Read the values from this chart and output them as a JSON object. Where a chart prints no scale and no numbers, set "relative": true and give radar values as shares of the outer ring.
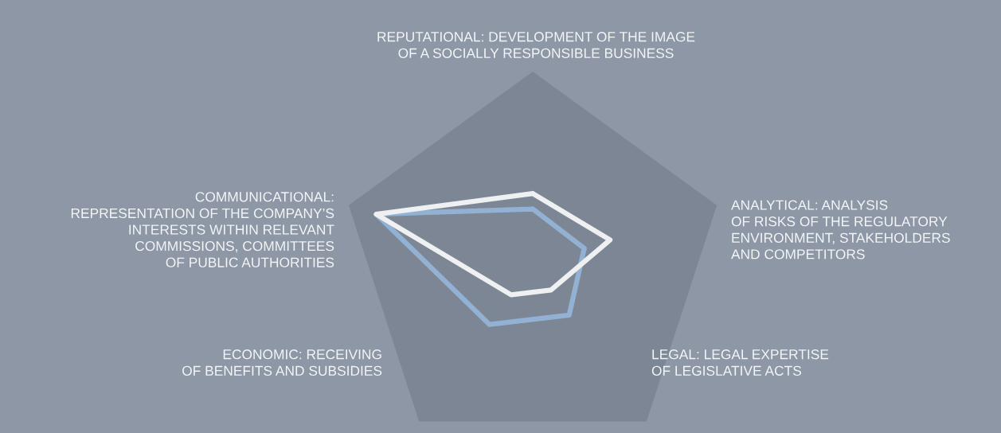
{
  "chart_data": {
    "type": "radar",
    "relative": true,
    "categories": [
      "REPUTATIONAL: DEVELOPMENT OF THE IMAGE\nOF A SOCIALLY RESPONSIBLE BUSINESS",
      "ANALYTICAL: ANALYSIS\nOF RISKS OF THE REGULATORY\nENVIRONMENT, STAKEHOLDERS\nAND COMPETITORS",
      "LEGAL: LEGAL EXPERTISE\nOF LEGISLATIVE ACTS",
      "ECONOMIC: RECEIVING\nOF BENEFITS AND SUBSIDIES",
      "COMMUNICATIONAL:\nREPRESENTATION OF THE COMPANY’S\nINTERESTS WITHIN RELEVANT\nCOMMISSIONS, COMMITTEES\nOF PUBLIC AUTHORITIES"
    ],
    "series": [
      {
        "color": "#92b1d3",
        "values": [
          0.29,
          0.28,
          0.32,
          0.38,
          0.85
        ]
      },
      {
        "color": "#eef0f2",
        "values": [
          0.37,
          0.42,
          0.16,
          0.19,
          0.85
        ]
      }
    ],
    "marker": "none",
    "line_style": "solid",
    "grid": false
  }
}
